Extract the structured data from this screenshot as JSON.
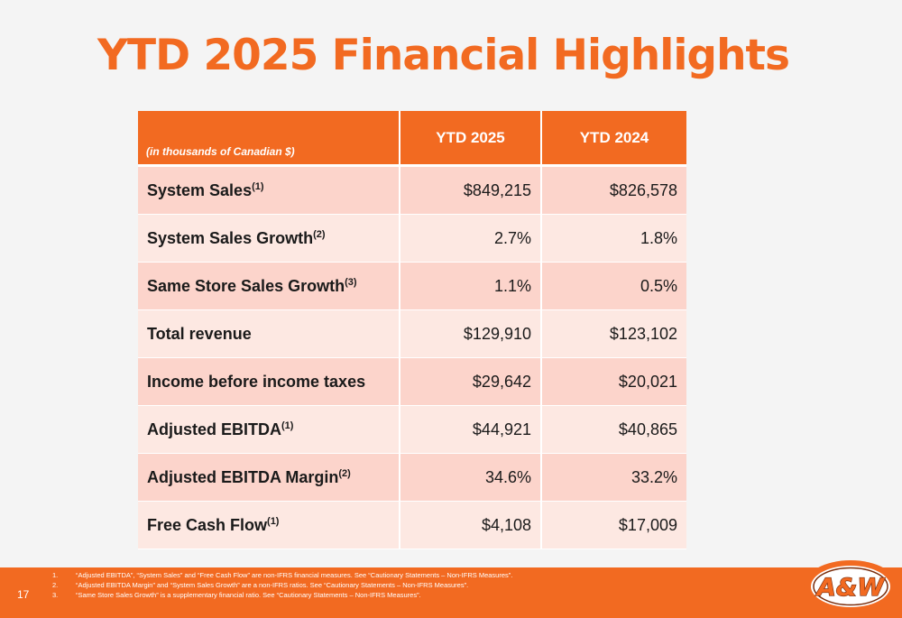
{
  "title": "YTD 2025 Financial Highlights",
  "table": {
    "units_label": "(in thousands of Canadian $)",
    "columns": [
      "YTD 2025",
      "YTD 2024"
    ],
    "rows": [
      {
        "label": "System Sales",
        "note": "(1)",
        "ytd2025": "$849,215",
        "ytd2024": "$826,578"
      },
      {
        "label": "System Sales Growth",
        "note": "(2)",
        "ytd2025": "2.7%",
        "ytd2024": "1.8%"
      },
      {
        "label": "Same Store Sales Growth",
        "note": "(3)",
        "ytd2025": "1.1%",
        "ytd2024": "0.5%"
      },
      {
        "label": "Total revenue",
        "note": "",
        "ytd2025": "$129,910",
        "ytd2024": "$123,102"
      },
      {
        "label": "Income before income taxes",
        "note": "",
        "ytd2025": "$29,642",
        "ytd2024": "$20,021"
      },
      {
        "label": "Adjusted EBITDA",
        "note": "(1)",
        "ytd2025": "$44,921",
        "ytd2024": "$40,865"
      },
      {
        "label": "Adjusted EBITDA Margin",
        "note": "(2)",
        "ytd2025": "34.6%",
        "ytd2024": "33.2%"
      },
      {
        "label": "Free Cash Flow",
        "note": "(1)",
        "ytd2025": "$4,108",
        "ytd2024": "$17,009"
      }
    ]
  },
  "footnotes": [
    {
      "num": "1.",
      "text": "“Adjusted EBITDA”, “System Sales” and “Free Cash Flow” are non-IFRS financial measures. See “Cautionary Statements – Non-IFRS Measures”."
    },
    {
      "num": "2.",
      "text": "“Adjusted EBITDA Margin” and “System Sales Growth” are a non-IFRS ratios. See “Cautionary Statements – Non-IFRS Measures”."
    },
    {
      "num": "3.",
      "text": "“Same Store Sales Growth” is a supplementary financial ratio. See “Cautionary Statements – Non-IFRS Measures”."
    }
  ],
  "page_number": "17",
  "logo": {
    "icon": "aw-logo-icon",
    "text": "A&W",
    "colors": {
      "ring": "#f26a21",
      "fill": "#ffffff",
      "text": "#f26a21",
      "outline": "#7a2d0c"
    }
  },
  "colors": {
    "accent": "#f26a21",
    "row_dark": "#fcd4cb",
    "row_light": "#fde8e2",
    "background": "#f4f4f4"
  }
}
